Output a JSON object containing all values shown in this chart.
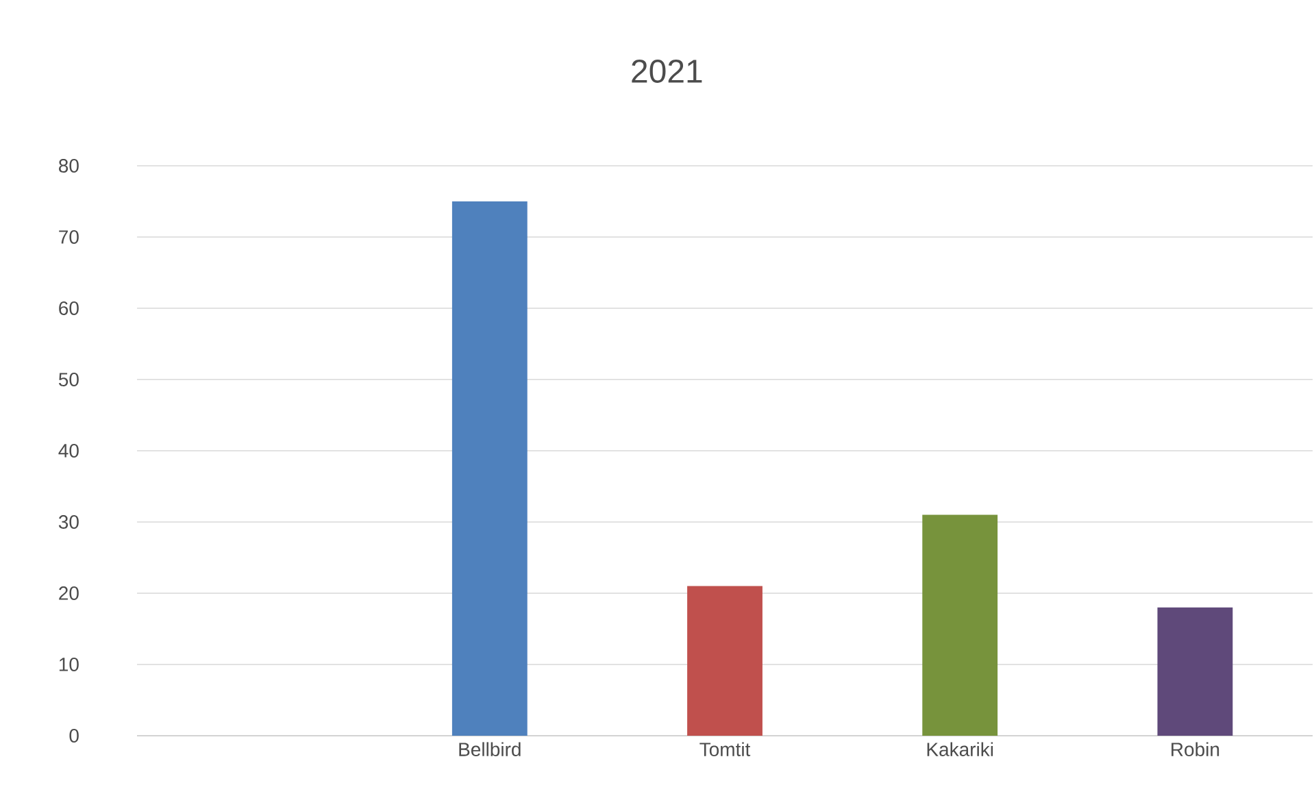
{
  "chart_data": {
    "type": "bar",
    "title": "2021",
    "categories": [
      null,
      "Bellbird",
      "Tomtit",
      "Kakariki",
      "Robin"
    ],
    "values": [
      null,
      75,
      21,
      31,
      18
    ],
    "colors": [
      null,
      "#4f81bd",
      "#c0504d",
      "#77933c",
      "#5f497a"
    ],
    "ylim": [
      0,
      80
    ],
    "yticks": [
      0,
      10,
      20,
      30,
      40,
      50,
      60,
      70,
      80
    ],
    "grid": "y"
  }
}
